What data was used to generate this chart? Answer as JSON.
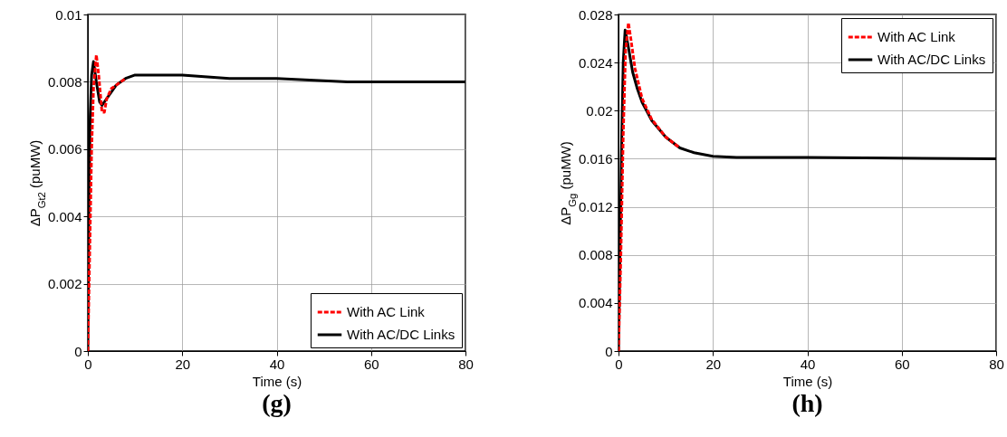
{
  "chart_data": [
    {
      "type": "line",
      "title": "(g)",
      "xlabel": "Time (s)",
      "ylabel": "ΔP$_{Gt2}$ (puMW)",
      "xlim": [
        0,
        80
      ],
      "ylim": [
        0,
        0.01
      ],
      "xticks": [
        0,
        20,
        40,
        60,
        80
      ],
      "yticks": [
        0,
        0.002,
        0.004,
        0.006,
        0.008,
        {
          "value": 0.01,
          "label": "0.01"
        }
      ],
      "grid": true,
      "legend": "bottom right",
      "series": [
        {
          "name": "With AC Link",
          "color": "#ff0000",
          "line_style": "dashed",
          "x": [
            0,
            0.4,
            0.8,
            1.2,
            1.8,
            2.3,
            3,
            3.5,
            4,
            5,
            6,
            8
          ],
          "values": [
            0,
            0.003,
            0.006,
            0.0078,
            0.0088,
            0.0082,
            0.0071,
            0.0071,
            0.0075,
            0.0078,
            0.0079,
            0.0081
          ]
        },
        {
          "name": "With AC/DC Links",
          "color": "#000000",
          "line_style": "solid",
          "x": [
            0,
            0.2,
            0.5,
            0.8,
            1.2,
            1.8,
            2.5,
            3,
            4,
            6,
            8,
            10,
            15,
            20,
            30,
            40,
            55,
            80
          ],
          "values": [
            0,
            0.004,
            0.007,
            0.0082,
            0.0086,
            0.008,
            0.0074,
            0.0073,
            0.0075,
            0.0079,
            0.0081,
            0.0082,
            0.0082,
            0.0082,
            0.0081,
            0.0081,
            0.008,
            0.008
          ]
        }
      ]
    },
    {
      "type": "line",
      "title": "(h)",
      "xlabel": "Time (s)",
      "ylabel": "ΔP$_{Gg}$ (puMW)",
      "xlim": [
        0,
        80
      ],
      "ylim": [
        0,
        0.028
      ],
      "xticks": [
        0,
        20,
        40,
        60,
        80
      ],
      "yticks": [
        0,
        0.004,
        0.008,
        0.012,
        0.016,
        0.02,
        0.024,
        0.028
      ],
      "grid": true,
      "legend": "top right",
      "series": [
        {
          "name": "With AC Link",
          "color": "#ff0000",
          "line_style": "dashed",
          "x": [
            0,
            0.5,
            1,
            1.5,
            2.1,
            2.6,
            3.5,
            5,
            7,
            10,
            13
          ],
          "values": [
            0,
            0.008,
            0.018,
            0.025,
            0.0273,
            0.026,
            0.0235,
            0.021,
            0.0193,
            0.0178,
            0.0169
          ]
        },
        {
          "name": "With AC/DC Links",
          "color": "#000000",
          "line_style": "solid",
          "x": [
            0,
            0.3,
            0.7,
            1,
            1.4,
            2,
            3,
            4,
            5,
            7,
            10,
            13,
            16,
            20,
            25,
            40,
            80
          ],
          "values": [
            0,
            0.008,
            0.018,
            0.024,
            0.0267,
            0.0255,
            0.0232,
            0.0218,
            0.0207,
            0.0192,
            0.0178,
            0.0169,
            0.0165,
            0.0162,
            0.0161,
            0.0161,
            0.016
          ]
        }
      ]
    }
  ]
}
